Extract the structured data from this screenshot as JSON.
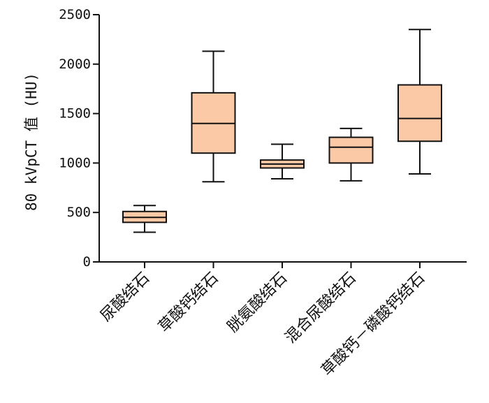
{
  "chart_data": {
    "type": "box",
    "ylabel": "80 kVpCT 值 (HU)",
    "xlabel": "",
    "title": "",
    "ylim": [
      0,
      2500
    ],
    "y_ticks": [
      "0",
      "500",
      "1000",
      "1500",
      "2000",
      "2500"
    ],
    "y_tick_values": [
      0,
      500,
      1000,
      1500,
      2000,
      2500
    ],
    "categories": [
      "尿酸结石",
      "草酸钙结石",
      "胱氨酸结石",
      "混合尿酸结石",
      "草酸钙－磷酸钙结石"
    ],
    "boxes": [
      {
        "whisker_low": 300,
        "q1": 400,
        "median": 450,
        "q3": 510,
        "whisker_high": 570
      },
      {
        "whisker_low": 810,
        "q1": 1100,
        "median": 1400,
        "q3": 1710,
        "whisker_high": 2130
      },
      {
        "whisker_low": 840,
        "q1": 950,
        "median": 990,
        "q3": 1030,
        "whisker_high": 1190
      },
      {
        "whisker_low": 820,
        "q1": 1000,
        "median": 1160,
        "q3": 1260,
        "whisker_high": 1350
      },
      {
        "whisker_low": 890,
        "q1": 1220,
        "median": 1450,
        "q3": 1790,
        "whisker_high": 2350
      }
    ],
    "grid": false,
    "legend": "none",
    "box_fill_color": "#fcc9a6",
    "line_color": "#111111"
  }
}
